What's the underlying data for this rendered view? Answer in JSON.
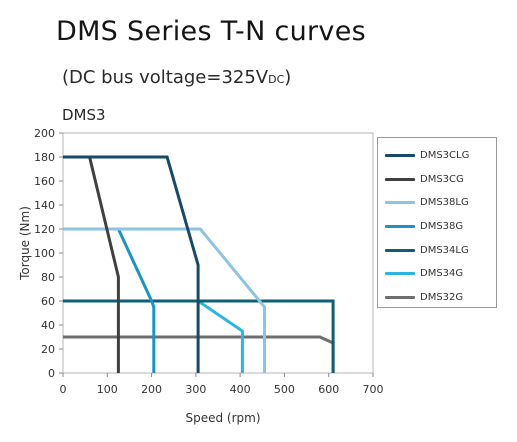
{
  "header": {
    "title": "DMS Series T-N curves",
    "subtitle_main": "(DC bus voltage=325V",
    "subtitle_sub": "DC",
    "subtitle_end": ")",
    "model": "DMS3"
  },
  "chart_data": {
    "type": "line",
    "title": "DMS Series T-N curves",
    "xlabel": "Speed (rpm)",
    "ylabel": "Torque (Nm)",
    "xlim": [
      0,
      700
    ],
    "ylim": [
      0,
      200
    ],
    "xticks": [
      0,
      100,
      200,
      300,
      400,
      500,
      600,
      700
    ],
    "yticks": [
      0,
      20,
      40,
      60,
      80,
      100,
      120,
      140,
      160,
      180,
      200
    ],
    "grid": false,
    "legend_position": "right",
    "series": [
      {
        "name": "DMS3CLG",
        "color": "#174a68",
        "x": [
          0,
          235,
          305,
          305,
          305
        ],
        "y": [
          180,
          180,
          90,
          90,
          0
        ]
      },
      {
        "name": "DMS3CG",
        "color": "#404040",
        "x": [
          0,
          60,
          125,
          125,
          125
        ],
        "y": [
          180,
          180,
          80,
          80,
          0
        ]
      },
      {
        "name": "DMS38LG",
        "color": "#8dc4e3",
        "x": [
          0,
          310,
          455,
          455
        ],
        "y": [
          120,
          120,
          55,
          0
        ]
      },
      {
        "name": "DMS38G",
        "color": "#1b93c4",
        "x": [
          0,
          125,
          200,
          205,
          205
        ],
        "y": [
          120,
          120,
          60,
          55,
          0
        ]
      },
      {
        "name": "DMS34LG",
        "color": "#0f5f74",
        "x": [
          0,
          610,
          610
        ],
        "y": [
          60,
          60,
          0
        ]
      },
      {
        "name": "DMS34G",
        "color": "#2bb5e3",
        "x": [
          0,
          305,
          405,
          405
        ],
        "y": [
          60,
          60,
          35,
          0
        ]
      },
      {
        "name": "DMS32G",
        "color": "#6e6e6e",
        "x": [
          0,
          580,
          610,
          610
        ],
        "y": [
          30,
          30,
          25,
          0
        ]
      }
    ]
  }
}
